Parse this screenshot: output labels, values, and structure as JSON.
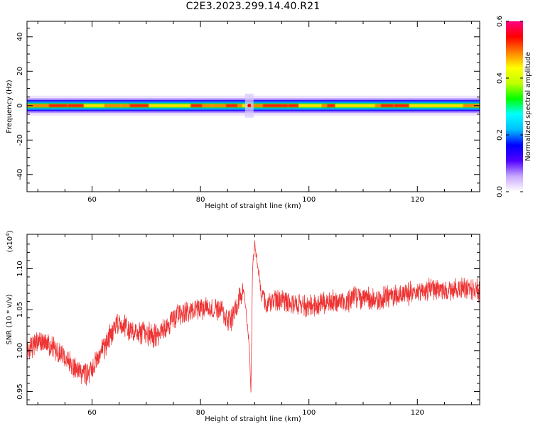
{
  "title": "C2E3.2023.299.14.40.R21",
  "chart_data": [
    {
      "type": "heatmap",
      "xlabel": "Height of straight line (km)",
      "ylabel": "Frequency (Hz)",
      "xlim": [
        48,
        131.5
      ],
      "ylim": [
        -50,
        49
      ],
      "xticks": [
        60,
        80,
        100,
        120
      ],
      "yticks": [
        40,
        20,
        0,
        -20,
        -40
      ],
      "band": {
        "center_hz": 0,
        "halfwidth_hz": [
          0.7,
          1.5,
          2.4,
          3.3,
          4.3,
          5.8
        ],
        "peak_amplitude": 0.6,
        "disturbance_km": 89
      },
      "colorbar": {
        "label": "Normalized spectral amplitude",
        "range": [
          0.0,
          0.6
        ],
        "ticks": [
          0.0,
          0.2,
          0.4,
          0.6
        ],
        "colors": [
          "#ffffff",
          "#c8a8ff",
          "#5000ff",
          "#0000ff",
          "#00bfff",
          "#00ffff",
          "#00ff00",
          "#c0ff00",
          "#ffff00",
          "#ff8000",
          "#ff0000",
          "#ff0080"
        ]
      }
    },
    {
      "type": "line",
      "xlabel": "Height of straight line (km)",
      "ylabel": "SNR (10 * v/v)",
      "scale_label": "(x10",
      "scale_exp": "4",
      "scale_close": ")",
      "xlim": [
        48,
        131.5
      ],
      "ylim": [
        0.934,
        1.142
      ],
      "xticks": [
        60,
        80,
        100,
        120
      ],
      "yticks": [
        0.95,
        1.0,
        1.05,
        1.1
      ],
      "ytick_labels": [
        "0.95",
        "1.00",
        "1.05",
        "1.10"
      ],
      "color": "#ee3333",
      "series": [
        {
          "x": [
            48,
            50,
            52,
            54,
            56,
            58,
            59,
            60,
            61,
            62,
            63,
            64,
            65,
            66,
            68,
            70,
            72,
            74,
            75,
            76,
            78,
            80,
            82,
            84,
            85,
            86,
            87,
            88,
            88.5,
            89,
            89.3,
            89.6,
            90,
            91,
            92,
            94,
            96,
            98,
            100,
            102,
            104,
            106,
            108,
            110,
            112,
            114,
            116,
            118,
            120,
            122,
            124,
            126,
            128,
            130,
            131.5
          ],
          "y": [
            1.0,
            1.01,
            1.008,
            0.998,
            0.985,
            0.975,
            0.97,
            0.978,
            0.99,
            1.0,
            1.015,
            1.025,
            1.035,
            1.03,
            1.022,
            1.02,
            1.018,
            1.03,
            1.04,
            1.045,
            1.048,
            1.05,
            1.052,
            1.048,
            1.035,
            1.04,
            1.06,
            1.075,
            1.04,
            1.005,
            0.945,
            1.1,
            1.13,
            1.08,
            1.055,
            1.062,
            1.058,
            1.056,
            1.054,
            1.057,
            1.06,
            1.058,
            1.064,
            1.066,
            1.062,
            1.065,
            1.068,
            1.07,
            1.071,
            1.074,
            1.073,
            1.075,
            1.077,
            1.074,
            1.072
          ]
        }
      ]
    }
  ]
}
